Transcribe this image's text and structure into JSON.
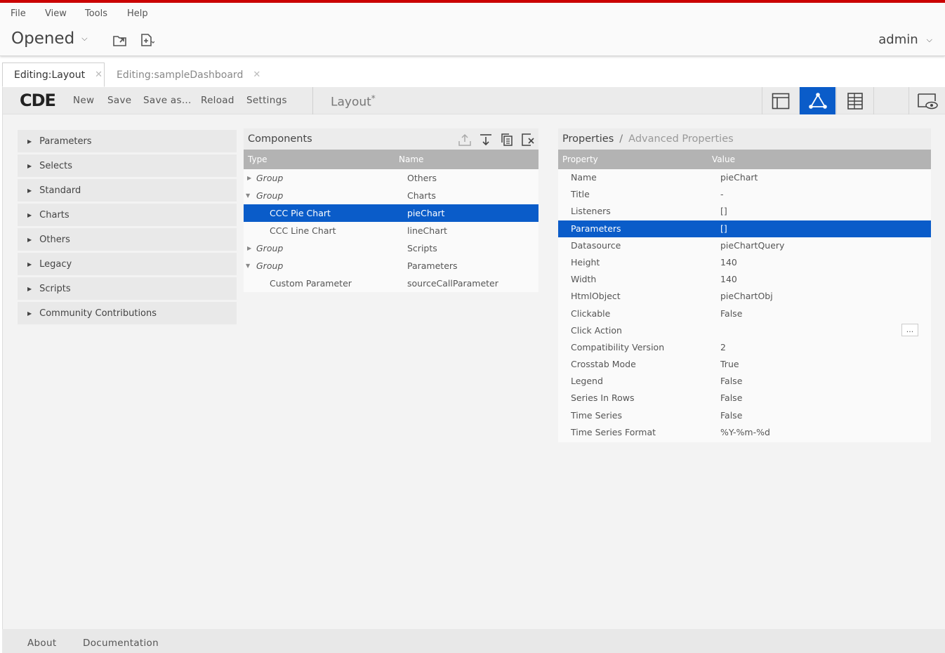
{
  "menu": [
    "File",
    "View",
    "Tools",
    "Help"
  ],
  "header": {
    "opened_label": "Opened",
    "user_label": "admin"
  },
  "tabs": [
    {
      "label": "Editing:Layout",
      "active": true
    },
    {
      "label": "Editing:sampleDashboard",
      "active": false
    }
  ],
  "toolbar": {
    "logo": "CDE",
    "buttons": [
      "New",
      "Save",
      "Save as...",
      "Reload",
      "Settings"
    ],
    "page_title": "Layout",
    "page_title_mark": "*",
    "view_icons": [
      "layout-view-icon",
      "components-view-icon",
      "datasources-view-icon",
      "preview-icon"
    ]
  },
  "categories": [
    "Parameters",
    "Selects",
    "Standard",
    "Charts",
    "Others",
    "Legacy",
    "Scripts",
    "Community Contributions"
  ],
  "components": {
    "title": "Components",
    "col_type": "Type",
    "col_name": "Name",
    "icons": [
      "export-icon",
      "move-down-icon",
      "duplicate-icon",
      "delete-icon"
    ],
    "rows": [
      {
        "type": "Group",
        "name": "Others",
        "kind": "group",
        "state": "collapsed"
      },
      {
        "type": "Group",
        "name": "Charts",
        "kind": "group",
        "state": "expanded"
      },
      {
        "type": "CCC Pie Chart",
        "name": "pieChart",
        "kind": "item",
        "selected": true
      },
      {
        "type": "CCC Line Chart",
        "name": "lineChart",
        "kind": "item"
      },
      {
        "type": "Group",
        "name": "Scripts",
        "kind": "group",
        "state": "collapsed"
      },
      {
        "type": "Group",
        "name": "Parameters",
        "kind": "group",
        "state": "expanded"
      },
      {
        "type": "Custom Parameter",
        "name": "sourceCallParameter",
        "kind": "item"
      }
    ]
  },
  "properties": {
    "title": "Properties",
    "separator": "/",
    "advanced": "Advanced Properties",
    "col_property": "Property",
    "col_value": "Value",
    "rows": [
      {
        "property": "Name",
        "value": "pieChart"
      },
      {
        "property": "Title",
        "value": "-"
      },
      {
        "property": "Listeners",
        "value": "[]"
      },
      {
        "property": "Parameters",
        "value": "[]",
        "selected": true
      },
      {
        "property": "Datasource",
        "value": "pieChartQuery"
      },
      {
        "property": "Height",
        "value": "140"
      },
      {
        "property": "Width",
        "value": "140"
      },
      {
        "property": "HtmlObject",
        "value": "pieChartObj"
      },
      {
        "property": "Clickable",
        "value": "False"
      },
      {
        "property": "Click Action",
        "value": "",
        "button": "..."
      },
      {
        "property": "Compatibility Version",
        "value": "2"
      },
      {
        "property": "Crosstab Mode",
        "value": "True"
      },
      {
        "property": "Legend",
        "value": "False"
      },
      {
        "property": "Series In Rows",
        "value": "False"
      },
      {
        "property": "Time Series",
        "value": "False"
      },
      {
        "property": "Time Series Format",
        "value": "%Y-%m-%d"
      }
    ]
  },
  "footer": [
    "About",
    "Documentation"
  ],
  "colors": {
    "accent": "#0a5cc9",
    "brand_bar": "#cc0000"
  }
}
